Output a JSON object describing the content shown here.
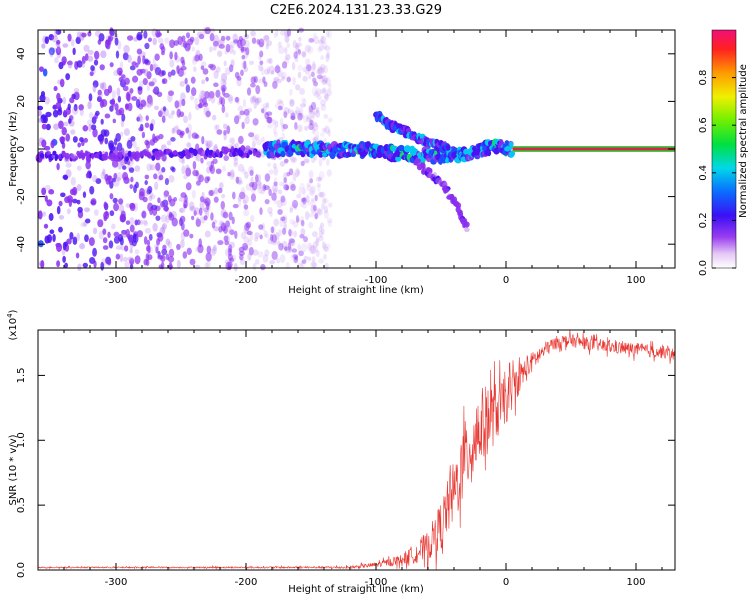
{
  "title": "C2E6.2024.131.23.33.G29",
  "colors": {
    "snr_line": "#e8342e",
    "carrier": "#e0224a",
    "axis": "#000000"
  },
  "chart_data": [
    {
      "type": "heatmap",
      "title": "C2E6.2024.131.23.33.G29",
      "xlabel": "Height of straight line (km)",
      "ylabel": "Frequency (Hz)",
      "xlim": [
        -360,
        130
      ],
      "ylim": [
        -50,
        50
      ],
      "xticks": [
        -300,
        -200,
        -100,
        0,
        100
      ],
      "yticks": [
        -40,
        -20,
        0,
        20,
        40
      ],
      "colorbar": {
        "label": "Normalized spectral amplitude",
        "range": [
          0,
          1
        ],
        "ticks": [
          0.0,
          0.2,
          0.4,
          0.6,
          0.8
        ],
        "colormap": "rainbow"
      },
      "features": [
        {
          "name": "carrier",
          "x_range": [
            5,
            130
          ],
          "frequency": 0,
          "amplitude": 0.9
        },
        {
          "name": "main-trace",
          "points": [
            [
              -185,
              0
            ],
            [
              -140,
              0
            ],
            [
              -100,
              -1
            ],
            [
              -60,
              -3
            ],
            [
              -30,
              -2
            ],
            [
              -10,
              1
            ],
            [
              5,
              0
            ]
          ],
          "amplitude": 0.35
        },
        {
          "name": "branch-upper",
          "points": [
            [
              -100,
              14
            ],
            [
              -90,
              10
            ],
            [
              -80,
              8
            ],
            [
              -70,
              5
            ],
            [
              -55,
              2
            ],
            [
              -45,
              0
            ]
          ],
          "amplitude": 0.3
        },
        {
          "name": "branch-lower",
          "points": [
            [
              -70,
              -5
            ],
            [
              -60,
              -10
            ],
            [
              -50,
              -15
            ],
            [
              -40,
              -22
            ],
            [
              -30,
              -35
            ]
          ],
          "amplitude": 0.15
        },
        {
          "name": "noise-region",
          "x_range": [
            -360,
            -135
          ],
          "y_range": [
            -50,
            50
          ],
          "amplitude": 0.05
        }
      ]
    },
    {
      "type": "line",
      "xlabel": "Height of straight line (km)",
      "ylabel": "SNR (10 * v/v)",
      "ylabel_multiplier": "(x10",
      "ylabel_exponent": "4",
      "xlim": [
        -360,
        130
      ],
      "ylim": [
        0,
        1.85
      ],
      "xticks": [
        -300,
        -200,
        -100,
        0,
        100
      ],
      "yticks": [
        0.0,
        0.5,
        1.0,
        1.5
      ],
      "yticklabels": [
        "0.0",
        "0.5",
        "1.0",
        "1.5"
      ],
      "series": [
        {
          "x": [
            -360,
            -300,
            -250,
            -200,
            -150,
            -120,
            -100,
            -80,
            -60,
            -50,
            -40,
            -30,
            -20,
            -10,
            0,
            10,
            20,
            30,
            40,
            50,
            60,
            80,
            100,
            120,
            130
          ],
          "y": [
            0.02,
            0.02,
            0.02,
            0.02,
            0.02,
            0.02,
            0.04,
            0.08,
            0.18,
            0.35,
            0.6,
            0.9,
            1.1,
            1.2,
            1.3,
            1.48,
            1.6,
            1.7,
            1.76,
            1.77,
            1.75,
            1.72,
            1.7,
            1.68,
            1.66
          ],
          "noise": [
            0.005,
            0.005,
            0.005,
            0.006,
            0.007,
            0.01,
            0.02,
            0.04,
            0.12,
            0.18,
            0.25,
            0.3,
            0.3,
            0.25,
            0.18,
            0.12,
            0.08,
            0.06,
            0.05,
            0.05,
            0.05,
            0.05,
            0.05,
            0.05,
            0.05
          ]
        }
      ]
    }
  ]
}
